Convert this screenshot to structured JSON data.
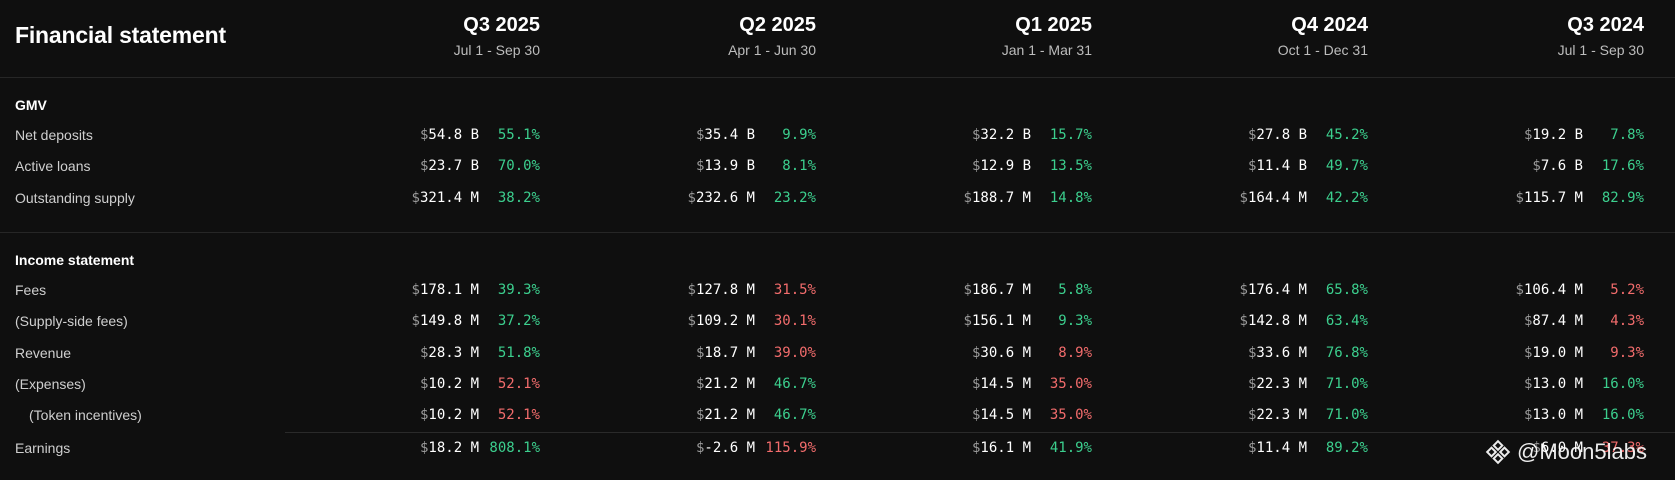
{
  "title": "Financial statement",
  "currency_symbol": "$",
  "columns": [
    {
      "quarter": "Q3 2025",
      "dates": "Jul 1 - Sep 30"
    },
    {
      "quarter": "Q2 2025",
      "dates": "Apr 1 - Jun 30"
    },
    {
      "quarter": "Q1 2025",
      "dates": "Jan 1 - Mar 31"
    },
    {
      "quarter": "Q4 2024",
      "dates": "Oct 1 - Dec 31"
    },
    {
      "quarter": "Q3 2024",
      "dates": "Jul 1 - Sep 30"
    }
  ],
  "sections": [
    {
      "title": "GMV",
      "rows": [
        {
          "label": "Net deposits",
          "cells": [
            {
              "value": "54.8 B",
              "pct": "55.1%",
              "status": "pos"
            },
            {
              "value": "35.4 B",
              "pct": "9.9%",
              "status": "pos"
            },
            {
              "value": "32.2 B",
              "pct": "15.7%",
              "status": "pos"
            },
            {
              "value": "27.8 B",
              "pct": "45.2%",
              "status": "pos"
            },
            {
              "value": "19.2 B",
              "pct": "7.8%",
              "status": "pos"
            }
          ]
        },
        {
          "label": "Active loans",
          "cells": [
            {
              "value": "23.7 B",
              "pct": "70.0%",
              "status": "pos"
            },
            {
              "value": "13.9 B",
              "pct": "8.1%",
              "status": "pos"
            },
            {
              "value": "12.9 B",
              "pct": "13.5%",
              "status": "pos"
            },
            {
              "value": "11.4 B",
              "pct": "49.7%",
              "status": "pos"
            },
            {
              "value": "7.6 B",
              "pct": "17.6%",
              "status": "pos"
            }
          ]
        },
        {
          "label": "Outstanding supply",
          "cells": [
            {
              "value": "321.4 M",
              "pct": "38.2%",
              "status": "pos"
            },
            {
              "value": "232.6 M",
              "pct": "23.2%",
              "status": "pos"
            },
            {
              "value": "188.7 M",
              "pct": "14.8%",
              "status": "pos"
            },
            {
              "value": "164.4 M",
              "pct": "42.2%",
              "status": "pos"
            },
            {
              "value": "115.7 M",
              "pct": "82.9%",
              "status": "pos"
            }
          ]
        }
      ]
    },
    {
      "title": "Income statement",
      "rows": [
        {
          "label": "Fees",
          "cells": [
            {
              "value": "178.1 M",
              "pct": "39.3%",
              "status": "pos"
            },
            {
              "value": "127.8 M",
              "pct": "31.5%",
              "status": "neg"
            },
            {
              "value": "186.7 M",
              "pct": "5.8%",
              "status": "pos"
            },
            {
              "value": "176.4 M",
              "pct": "65.8%",
              "status": "pos"
            },
            {
              "value": "106.4 M",
              "pct": "5.2%",
              "status": "neg"
            }
          ]
        },
        {
          "label": "(Supply-side fees)",
          "cells": [
            {
              "value": "149.8 M",
              "pct": "37.2%",
              "status": "pos"
            },
            {
              "value": "109.2 M",
              "pct": "30.1%",
              "status": "neg"
            },
            {
              "value": "156.1 M",
              "pct": "9.3%",
              "status": "pos"
            },
            {
              "value": "142.8 M",
              "pct": "63.4%",
              "status": "pos"
            },
            {
              "value": "87.4 M",
              "pct": "4.3%",
              "status": "neg"
            }
          ]
        },
        {
          "label": "Revenue",
          "cells": [
            {
              "value": "28.3 M",
              "pct": "51.8%",
              "status": "pos"
            },
            {
              "value": "18.7 M",
              "pct": "39.0%",
              "status": "neg"
            },
            {
              "value": "30.6 M",
              "pct": "8.9%",
              "status": "neg"
            },
            {
              "value": "33.6 M",
              "pct": "76.8%",
              "status": "pos"
            },
            {
              "value": "19.0 M",
              "pct": "9.3%",
              "status": "neg"
            }
          ]
        },
        {
          "label": "(Expenses)",
          "cells": [
            {
              "value": "10.2 M",
              "pct": "52.1%",
              "status": "neg"
            },
            {
              "value": "21.2 M",
              "pct": "46.7%",
              "status": "pos"
            },
            {
              "value": "14.5 M",
              "pct": "35.0%",
              "status": "neg"
            },
            {
              "value": "22.3 M",
              "pct": "71.0%",
              "status": "pos"
            },
            {
              "value": "13.0 M",
              "pct": "16.0%",
              "status": "pos"
            }
          ]
        },
        {
          "label": "(Token incentives)",
          "indent": true,
          "cells": [
            {
              "value": "10.2 M",
              "pct": "52.1%",
              "status": "neg"
            },
            {
              "value": "21.2 M",
              "pct": "46.7%",
              "status": "pos"
            },
            {
              "value": "14.5 M",
              "pct": "35.0%",
              "status": "neg"
            },
            {
              "value": "22.3 M",
              "pct": "71.0%",
              "status": "pos"
            },
            {
              "value": "13.0 M",
              "pct": "16.0%",
              "status": "pos"
            }
          ]
        },
        {
          "label": "Earnings",
          "total": true,
          "cells": [
            {
              "value": "18.2 M",
              "pct": "808.1%",
              "status": "pos"
            },
            {
              "value": "-2.6 M",
              "pct": "115.9%",
              "status": "neg"
            },
            {
              "value": "16.1 M",
              "pct": "41.9%",
              "status": "pos"
            },
            {
              "value": "11.4 M",
              "pct": "89.2%",
              "status": "pos"
            },
            {
              "value": "6.0 M",
              "pct": "37.3%",
              "status": "neg"
            }
          ]
        }
      ]
    }
  ],
  "watermark": {
    "text": "@Moon5labs",
    "icon": "binance-diamond-icon"
  },
  "colors": {
    "positive": "#3ccf8e",
    "negative": "#f26c6c",
    "background": "#0f0f0f"
  }
}
